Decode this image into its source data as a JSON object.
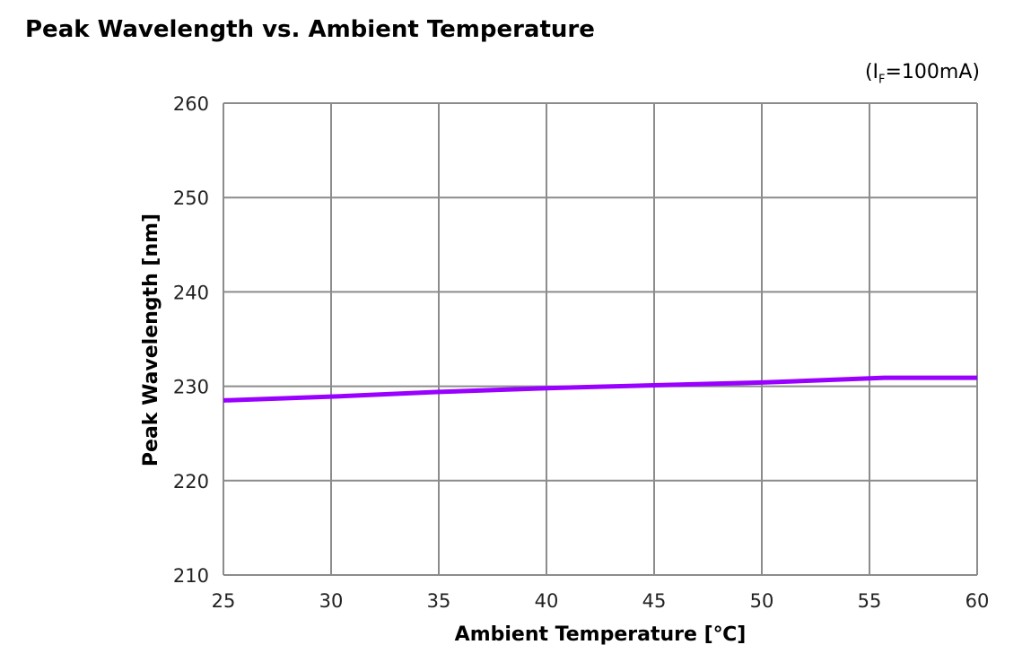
{
  "chart_data": {
    "type": "line",
    "title": "Peak Wavelength vs. Ambient Temperature",
    "condition": {
      "prefix": "(I",
      "subscript": "F",
      "suffix": "=100mA)"
    },
    "xlabel": "Ambient Temperature [℃]",
    "ylabel": "Peak Wavelength [nm]",
    "xlim": [
      25,
      60
    ],
    "ylim": [
      210,
      260
    ],
    "xticks": [
      25,
      30,
      35,
      40,
      45,
      50,
      55,
      60
    ],
    "yticks": [
      210,
      220,
      230,
      240,
      250,
      260
    ],
    "grid": true,
    "series": [
      {
        "name": "Peak Wavelength",
        "color": "#9900ff",
        "x": [
          25,
          30,
          35,
          40,
          45,
          50,
          55.7,
          60
        ],
        "y": [
          228.5,
          228.9,
          229.4,
          229.8,
          230.1,
          230.4,
          230.9,
          230.9
        ]
      }
    ]
  }
}
